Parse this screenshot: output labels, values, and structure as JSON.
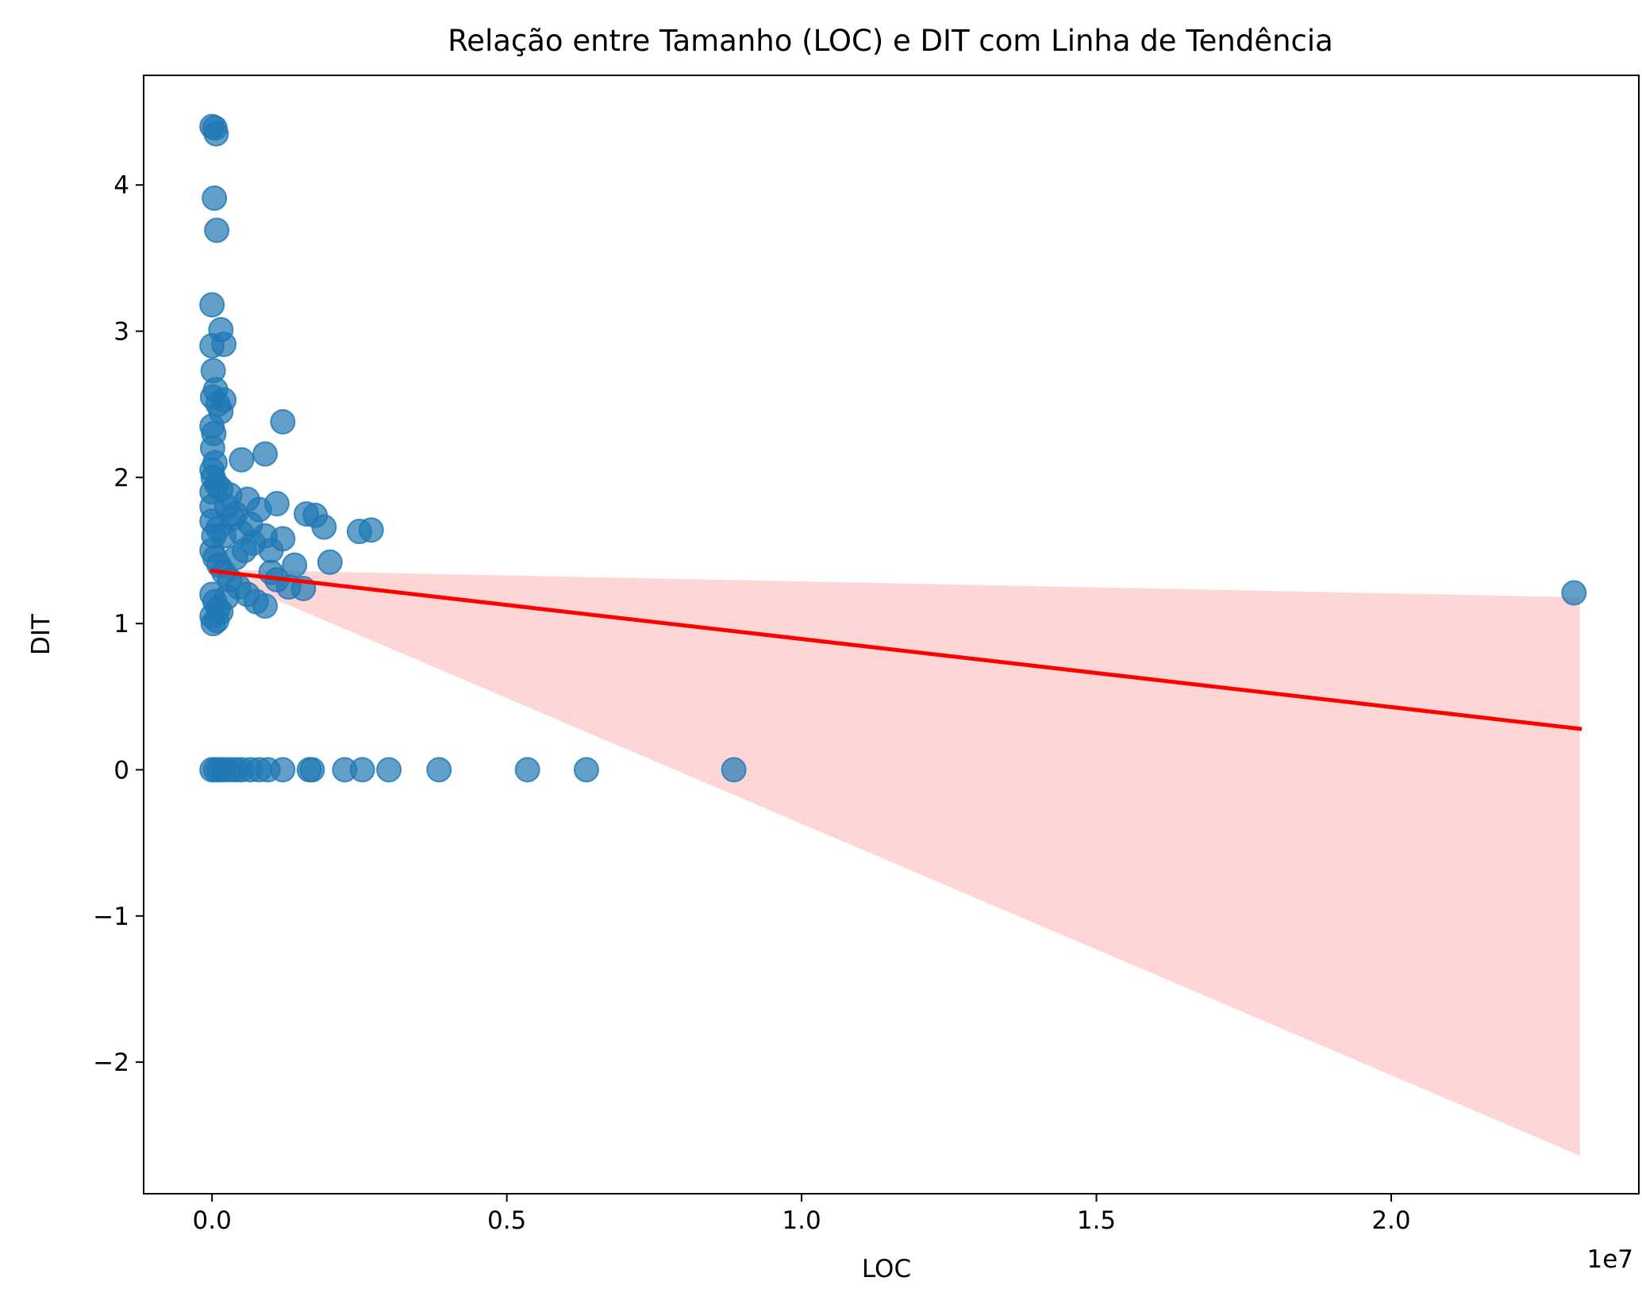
{
  "chart_data": {
    "type": "scatter",
    "title": "Relação entre Tamanho (LOC) e DIT com Linha de Tendência",
    "xlabel": "LOC",
    "ylabel": "DIT",
    "x_offset_label": "1e7",
    "x_unit_multiplier": 10000000,
    "xlim": [
      -1160000,
      24200000
    ],
    "ylim": [
      -2.9,
      4.75
    ],
    "x_ticks": [
      {
        "value": 0,
        "label": "0.0"
      },
      {
        "value": 5000000,
        "label": "0.5"
      },
      {
        "value": 10000000,
        "label": "1.0"
      },
      {
        "value": 15000000,
        "label": "1.5"
      },
      {
        "value": 20000000,
        "label": "2.0"
      }
    ],
    "y_ticks": [
      {
        "value": -2,
        "label": "−2"
      },
      {
        "value": -1,
        "label": "−1"
      },
      {
        "value": 0,
        "label": "0"
      },
      {
        "value": 1,
        "label": "1"
      },
      {
        "value": 2,
        "label": "2"
      },
      {
        "value": 3,
        "label": "3"
      },
      {
        "value": 4,
        "label": "4"
      }
    ],
    "grid": false,
    "colors": {
      "points": "#1f77b4",
      "trend_line": "#ff0000",
      "confidence_band": "#ffcccc"
    },
    "trend_line": {
      "x": [
        0,
        23200000
      ],
      "y": [
        1.36,
        0.28
      ]
    },
    "confidence_band": {
      "x": [
        0,
        23200000
      ],
      "upper": [
        1.37,
        1.18
      ],
      "lower": [
        1.35,
        -2.64
      ]
    },
    "series": [
      {
        "points": [
          [
            0,
            4.4
          ],
          [
            50000,
            4.39
          ],
          [
            70000,
            4.35
          ],
          [
            40000,
            3.91
          ],
          [
            80000,
            3.69
          ],
          [
            0,
            3.18
          ],
          [
            150000,
            3.01
          ],
          [
            0,
            2.9
          ],
          [
            200000,
            2.91
          ],
          [
            20000,
            2.73
          ],
          [
            60000,
            2.6
          ],
          [
            10000,
            2.55
          ],
          [
            100000,
            2.5
          ],
          [
            200000,
            2.53
          ],
          [
            150000,
            2.45
          ],
          [
            0,
            2.35
          ],
          [
            30000,
            2.3
          ],
          [
            10000,
            2.2
          ],
          [
            50000,
            2.1
          ],
          [
            0,
            2.05
          ],
          [
            20000,
            2.0
          ],
          [
            80000,
            1.95
          ],
          [
            0,
            1.9
          ],
          [
            150000,
            1.92
          ],
          [
            300000,
            1.88
          ],
          [
            500000,
            2.12
          ],
          [
            900000,
            2.16
          ],
          [
            1200000,
            2.38
          ],
          [
            250000,
            1.8
          ],
          [
            400000,
            1.75
          ],
          [
            600000,
            1.85
          ],
          [
            800000,
            1.78
          ],
          [
            1100000,
            1.82
          ],
          [
            0,
            1.7
          ],
          [
            100000,
            1.65
          ],
          [
            200000,
            1.6
          ],
          [
            350000,
            1.72
          ],
          [
            500000,
            1.62
          ],
          [
            700000,
            1.55
          ],
          [
            900000,
            1.6
          ],
          [
            1000000,
            1.5
          ],
          [
            1200000,
            1.58
          ],
          [
            1400000,
            1.4
          ],
          [
            1600000,
            1.75
          ],
          [
            1750000,
            1.74
          ],
          [
            1900000,
            1.66
          ],
          [
            2000000,
            1.42
          ],
          [
            2500000,
            1.63
          ],
          [
            2700000,
            1.64
          ],
          [
            0,
            1.5
          ],
          [
            50000,
            1.45
          ],
          [
            120000,
            1.4
          ],
          [
            200000,
            1.35
          ],
          [
            300000,
            1.3
          ],
          [
            450000,
            1.25
          ],
          [
            600000,
            1.2
          ],
          [
            750000,
            1.15
          ],
          [
            900000,
            1.12
          ],
          [
            1300000,
            1.25
          ],
          [
            1550000,
            1.24
          ],
          [
            0,
            1.2
          ],
          [
            50000,
            1.15
          ],
          [
            100000,
            1.1
          ],
          [
            0,
            1.05
          ],
          [
            20000,
            1.0
          ],
          [
            80000,
            1.02
          ],
          [
            150000,
            1.08
          ],
          [
            250000,
            1.18
          ],
          [
            400000,
            1.45
          ],
          [
            550000,
            1.5
          ],
          [
            650000,
            1.68
          ],
          [
            1000000,
            1.35
          ],
          [
            1100000,
            1.3
          ],
          [
            0,
            1.8
          ],
          [
            30000,
            1.6
          ],
          [
            23100000,
            1.21
          ],
          [
            0,
            0
          ],
          [
            60000,
            0
          ],
          [
            120000,
            0
          ],
          [
            200000,
            0
          ],
          [
            300000,
            0
          ],
          [
            400000,
            0
          ],
          [
            500000,
            0
          ],
          [
            650000,
            0
          ],
          [
            800000,
            0
          ],
          [
            950000,
            0
          ],
          [
            1200000,
            0
          ],
          [
            1650000,
            0
          ],
          [
            1700000,
            0
          ],
          [
            2250000,
            0
          ],
          [
            2550000,
            0
          ],
          [
            3000000,
            0
          ],
          [
            3850000,
            0
          ],
          [
            5350000,
            0
          ],
          [
            6350000,
            0
          ],
          [
            8850000,
            0
          ]
        ]
      }
    ]
  }
}
